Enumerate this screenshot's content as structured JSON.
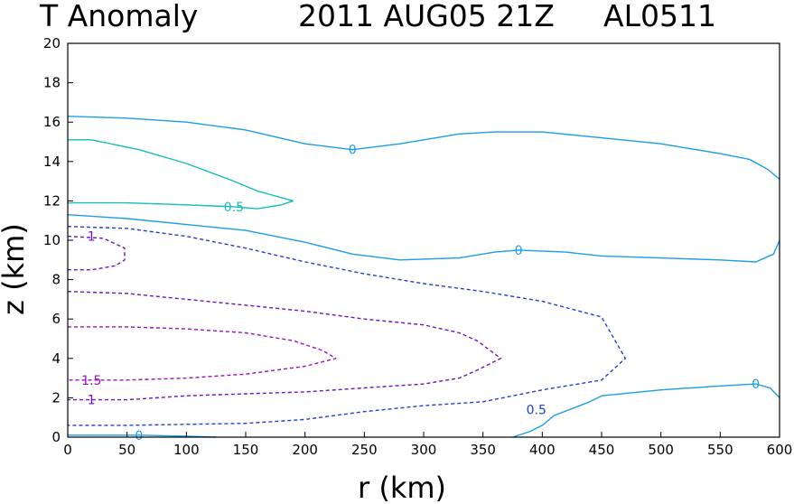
{
  "title": {
    "left": "T Anomaly",
    "date": "2011 AUG05 21Z",
    "storm": "AL0511"
  },
  "chart_data": {
    "type": "contour",
    "xlabel": "r (km)",
    "ylabel": "z (km)",
    "xlim": [
      0,
      600
    ],
    "ylim": [
      0,
      20
    ],
    "xticks": [
      "0",
      "50",
      "100",
      "150",
      "200",
      "250",
      "300",
      "350",
      "400",
      "450",
      "500",
      "550",
      "600"
    ],
    "yticks": [
      "0",
      "2",
      "4",
      "6",
      "8",
      "10",
      "12",
      "14",
      "16",
      "18",
      "20"
    ],
    "grid": false,
    "colors": {
      "zero": "#1a9ee8",
      "pos_0_5": "#14bdb5",
      "neg_0_5": "#1f3fd6",
      "neg_1": "#6a14c8",
      "neg_1_5": "#9a10c0"
    },
    "contours": [
      {
        "level": "0",
        "color_key": "zero",
        "dashed": false,
        "label": "0",
        "label_at": [
          240,
          14.6
        ],
        "points": [
          [
            0,
            16.3
          ],
          [
            50,
            16.2
          ],
          [
            100,
            16.0
          ],
          [
            150,
            15.6
          ],
          [
            200,
            14.9
          ],
          [
            240,
            14.6
          ],
          [
            280,
            14.9
          ],
          [
            330,
            15.4
          ],
          [
            360,
            15.5
          ],
          [
            400,
            15.5
          ],
          [
            450,
            15.2
          ],
          [
            500,
            14.9
          ],
          [
            550,
            14.4
          ],
          [
            575,
            14.1
          ],
          [
            590,
            13.6
          ],
          [
            600,
            13.1
          ]
        ]
      },
      {
        "level": "0",
        "color_key": "zero",
        "dashed": false,
        "label": "0",
        "label_at": [
          380,
          9.5
        ],
        "points": [
          [
            0,
            11.3
          ],
          [
            50,
            11.1
          ],
          [
            100,
            10.8
          ],
          [
            150,
            10.5
          ],
          [
            200,
            9.9
          ],
          [
            240,
            9.3
          ],
          [
            280,
            9.0
          ],
          [
            330,
            9.1
          ],
          [
            360,
            9.4
          ],
          [
            380,
            9.5
          ],
          [
            420,
            9.4
          ],
          [
            450,
            9.2
          ],
          [
            500,
            9.1
          ],
          [
            550,
            9.0
          ],
          [
            580,
            8.9
          ],
          [
            595,
            9.3
          ],
          [
            600,
            10.0
          ]
        ]
      },
      {
        "level": "0",
        "color_key": "zero",
        "dashed": false,
        "label": "0",
        "label_at": [
          580,
          2.7
        ],
        "points": [
          [
            375,
            0.0
          ],
          [
            390,
            0.3
          ],
          [
            400,
            0.6
          ],
          [
            410,
            1.1
          ],
          [
            440,
            1.8
          ],
          [
            450,
            2.1
          ],
          [
            500,
            2.4
          ],
          [
            550,
            2.6
          ],
          [
            580,
            2.7
          ],
          [
            592,
            2.5
          ],
          [
            600,
            2.0
          ]
        ]
      },
      {
        "level": "0",
        "color_key": "zero",
        "dashed": false,
        "label": "0",
        "label_at": [
          60,
          0.1
        ],
        "points": [
          [
            0,
            0.1
          ],
          [
            60,
            0.1
          ],
          [
            100,
            0.05
          ],
          [
            125,
            0.0
          ]
        ]
      },
      {
        "level": "0.5",
        "color_key": "pos_0_5",
        "dashed": false,
        "label": "0.5",
        "label_at": [
          140,
          11.7
        ],
        "points": [
          [
            0,
            15.1
          ],
          [
            20,
            15.1
          ],
          [
            60,
            14.6
          ],
          [
            100,
            13.9
          ],
          [
            140,
            13.0
          ],
          [
            160,
            12.5
          ],
          [
            190,
            12.0
          ],
          [
            180,
            11.8
          ],
          [
            160,
            11.6
          ],
          [
            140,
            11.7
          ],
          [
            100,
            11.8
          ],
          [
            50,
            11.9
          ],
          [
            0,
            11.9
          ]
        ]
      },
      {
        "level": "-0.5",
        "color_key": "neg_0_5",
        "dashed": true,
        "label": "",
        "label_at": null,
        "points": [
          [
            0,
            10.7
          ],
          [
            50,
            10.6
          ],
          [
            100,
            10.2
          ],
          [
            150,
            9.6
          ],
          [
            200,
            8.9
          ],
          [
            250,
            8.3
          ],
          [
            300,
            7.8
          ],
          [
            350,
            7.4
          ],
          [
            400,
            6.9
          ],
          [
            450,
            6.1
          ],
          [
            470,
            4.0
          ],
          [
            450,
            2.9
          ],
          [
            400,
            2.4
          ],
          [
            350,
            1.8
          ],
          [
            300,
            1.6
          ],
          [
            250,
            1.3
          ],
          [
            200,
            0.9
          ],
          [
            150,
            0.7
          ],
          [
            100,
            0.65
          ],
          [
            50,
            0.6
          ],
          [
            0,
            0.6
          ]
        ]
      },
      {
        "level": "-0.5",
        "color_key": "neg_0_5",
        "dashed": false,
        "label": "0.5",
        "label_at": [
          395,
          1.4
        ],
        "points": []
      },
      {
        "level": "-1",
        "color_key": "neg_1",
        "dashed": true,
        "label": "1",
        "label_at": [
          20,
          10.2
        ],
        "points": [
          [
            0,
            10.2
          ],
          [
            30,
            10.1
          ],
          [
            48,
            9.6
          ],
          [
            48,
            9.0
          ],
          [
            40,
            8.7
          ],
          [
            20,
            8.5
          ],
          [
            0,
            8.5
          ]
        ]
      },
      {
        "level": "-1",
        "color_key": "neg_1",
        "dashed": true,
        "label": "1",
        "label_at": [
          20,
          1.9
        ],
        "points": [
          [
            0,
            7.4
          ],
          [
            50,
            7.3
          ],
          [
            100,
            7.0
          ],
          [
            150,
            6.7
          ],
          [
            200,
            6.4
          ],
          [
            250,
            6.0
          ],
          [
            300,
            5.7
          ],
          [
            330,
            5.3
          ],
          [
            345,
            4.9
          ],
          [
            365,
            4.0
          ],
          [
            345,
            3.4
          ],
          [
            330,
            3.0
          ],
          [
            300,
            2.7
          ],
          [
            250,
            2.5
          ],
          [
            200,
            2.3
          ],
          [
            150,
            2.2
          ],
          [
            100,
            2.1
          ],
          [
            50,
            1.9
          ],
          [
            0,
            1.9
          ]
        ]
      },
      {
        "level": "-1.5",
        "color_key": "neg_1_5",
        "dashed": true,
        "label": "1.5",
        "label_at": [
          20,
          2.9
        ],
        "points": [
          [
            0,
            5.6
          ],
          [
            50,
            5.6
          ],
          [
            100,
            5.5
          ],
          [
            150,
            5.3
          ],
          [
            190,
            4.9
          ],
          [
            215,
            4.4
          ],
          [
            226,
            4.0
          ],
          [
            200,
            3.6
          ],
          [
            150,
            3.2
          ],
          [
            100,
            3.0
          ],
          [
            50,
            2.9
          ],
          [
            0,
            2.9
          ]
        ]
      }
    ]
  }
}
